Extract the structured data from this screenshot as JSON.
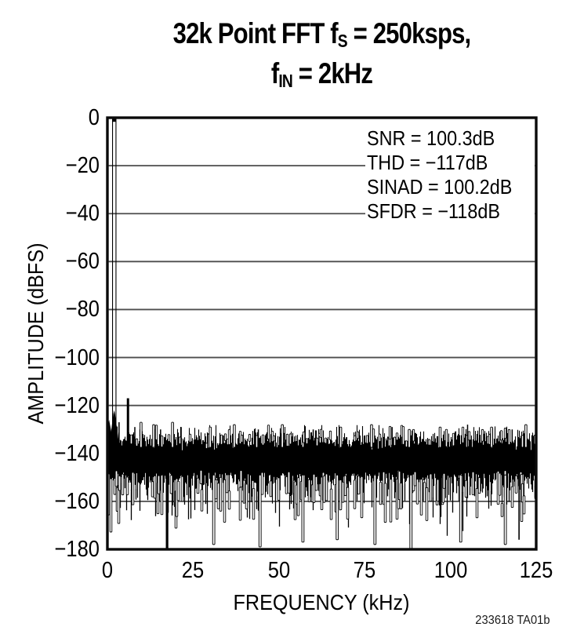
{
  "caption": "233618 TA01b",
  "chart_data": {
    "type": "line",
    "title_text": "32k Point FFT fS = 250ksps, fIN = 2kHz",
    "title_lines": [
      [
        [
          "t",
          "32k Point FFT f"
        ],
        [
          "sub",
          "S"
        ],
        [
          "t",
          " = 250ksps,"
        ]
      ],
      [
        [
          "t",
          "f"
        ],
        [
          "sub",
          "IN"
        ],
        [
          "t",
          " = 2kHz"
        ]
      ]
    ],
    "xlabel": "FREQUENCY (kHz)",
    "ylabel": "AMPLITUDE (dBFS)",
    "xlim": [
      0,
      125
    ],
    "ylim": [
      -180,
      0
    ],
    "x_ticks": [
      0,
      25,
      50,
      75,
      100,
      125
    ],
    "x_tick_labels": [
      "0",
      "25",
      "50",
      "75",
      "100",
      "125"
    ],
    "y_ticks": [
      0,
      -20,
      -40,
      -60,
      -80,
      -100,
      -120,
      -140,
      -160,
      -180
    ],
    "y_tick_labels": [
      "0",
      "−20",
      "−40",
      "−60",
      "−80",
      "−100",
      "−120",
      "−140",
      "−160",
      "−180"
    ],
    "grid": "horizontal",
    "legend": "none",
    "annotations": [
      "SNR = 100.3dB",
      "THD = −117dB",
      "SINAD = 100.2dB",
      "SFDR = −118dB"
    ],
    "metrics": {
      "snr_db": 100.3,
      "thd_db": -117,
      "sinad_db": 100.2,
      "sfdr_db": -118,
      "fft_points": "32k",
      "sample_rate": "250ksps",
      "input_freq": "2kHz"
    },
    "fundamental": {
      "khz": 2,
      "dbfs": 0,
      "style": "hollow"
    },
    "dc_bump": {
      "khz": 0.5,
      "dbfs": -126
    },
    "spurs_up": [
      [
        3.4,
        -127,
        "solid"
      ],
      [
        6.0,
        -117,
        "solid-thick"
      ],
      [
        8.0,
        -129,
        "solid"
      ],
      [
        9.8,
        -127,
        "hollow"
      ],
      [
        13.5,
        -128,
        "hollow"
      ],
      [
        15.5,
        -130,
        "solid"
      ],
      [
        19.0,
        -127,
        "hollow"
      ],
      [
        21.5,
        -129,
        "solid"
      ],
      [
        30.0,
        -129,
        "hollow"
      ],
      [
        37.0,
        -128,
        "hollow"
      ],
      [
        44.0,
        -130,
        "solid"
      ],
      [
        51.0,
        -128,
        "hollow"
      ],
      [
        60.0,
        -130,
        "solid"
      ],
      [
        68.0,
        -129,
        "hollow"
      ],
      [
        77.0,
        -128,
        "hollow"
      ],
      [
        83.0,
        -129,
        "solid"
      ],
      [
        88.0,
        -130,
        "hollow"
      ],
      [
        97.0,
        -129,
        "hollow"
      ],
      [
        105.0,
        -128,
        "solid"
      ],
      [
        112.0,
        -129,
        "hollow"
      ],
      [
        118.0,
        -130,
        "solid"
      ],
      [
        122.0,
        -128,
        "hollow"
      ]
    ],
    "dips_down": [
      [
        17.4,
        -180,
        "solid-thick"
      ],
      [
        31.0,
        -178,
        "hollow"
      ],
      [
        44.5,
        -179,
        "hollow"
      ],
      [
        57.0,
        -177,
        "hollow"
      ],
      [
        67.0,
        -176,
        "hollow"
      ],
      [
        78.0,
        -178,
        "hollow"
      ],
      [
        88.5,
        -180,
        "hollow"
      ],
      [
        103.0,
        -177,
        "hollow"
      ],
      [
        116.0,
        -178,
        "hollow"
      ],
      [
        120.0,
        -176,
        "solid"
      ]
    ],
    "noise_floor": {
      "seed": 20,
      "band_top_db": -135.2,
      "band_top_sigma": 1.3,
      "band_bottom_db": -148,
      "band_bottom_sigma": 4.5,
      "up_prob": 0.5,
      "up_sigma": 2.2,
      "up_max_db": -128.2,
      "up_hollow_frac": 0.25,
      "down_prob": 0.32,
      "down_mean_extra": 4,
      "down_sigma": 7,
      "down_min_db": -179.5,
      "down_hollow_frac": 0.62
    },
    "colors": {
      "trace": "#000000",
      "grid": "#4d4d4d",
      "frame": "#0a0a0a",
      "background": "#ffffff"
    }
  }
}
